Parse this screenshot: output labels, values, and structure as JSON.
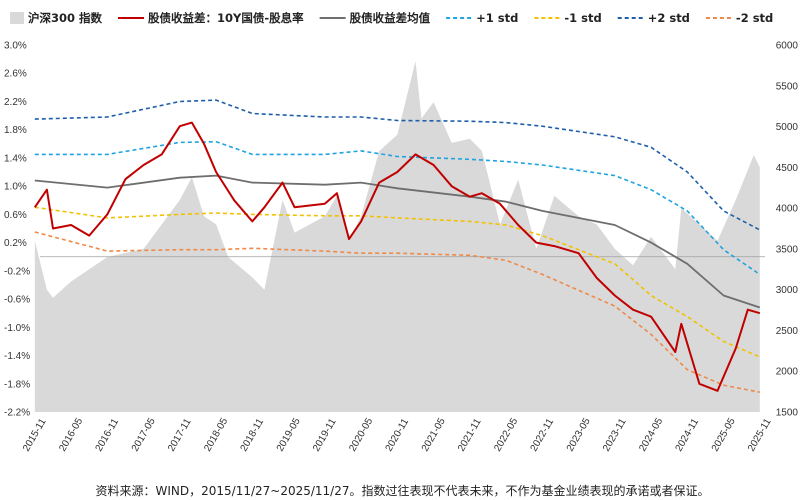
{
  "chart_data": {
    "type": "line",
    "left_axis": {
      "ylim": [
        -2.2,
        3.0
      ],
      "ticks": [
        "3.0%",
        "2.6%",
        "2.2%",
        "1.8%",
        "1.4%",
        "1.0%",
        "0.6%",
        "0.2%",
        "-0.2%",
        "-0.6%",
        "-1.0%",
        "-1.4%",
        "-1.8%",
        "-2.2%"
      ],
      "tick_values": [
        3.0,
        2.6,
        2.2,
        1.8,
        1.4,
        1.0,
        0.6,
        0.2,
        -0.2,
        -0.6,
        -1.0,
        -1.4,
        -1.8,
        -2.2
      ]
    },
    "right_axis": {
      "ylim": [
        1500,
        6000
      ],
      "ticks": [
        "6000",
        "5500",
        "5000",
        "4500",
        "4000",
        "3500",
        "3000",
        "2500",
        "2000",
        "1500"
      ],
      "tick_values": [
        6000,
        5500,
        5000,
        4500,
        4000,
        3500,
        3000,
        2500,
        2000,
        1500
      ]
    },
    "x_axis": {
      "start": "2015-11-27",
      "end": "2025-11-27",
      "tick_labels": [
        "2015-11",
        "2016-05",
        "2016-11",
        "2017-05",
        "2017-11",
        "2018-05",
        "2018-11",
        "2019-05",
        "2019-11",
        "2020-05",
        "2020-11",
        "2021-05",
        "2021-11",
        "2022-05",
        "2022-11",
        "2023-05",
        "2023-11",
        "2024-05",
        "2024-11",
        "2025-05",
        "2025-11"
      ]
    },
    "series": [
      {
        "name": "沪深300 指数",
        "kind": "area",
        "axis": "right",
        "color": "#d9d9d9",
        "points": [
          [
            "2015-11",
            3600
          ],
          [
            "2016-01",
            3000
          ],
          [
            "2016-02",
            2900
          ],
          [
            "2016-05",
            3100
          ],
          [
            "2016-11",
            3400
          ],
          [
            "2017-05",
            3500
          ],
          [
            "2017-11",
            4100
          ],
          [
            "2018-01",
            4380
          ],
          [
            "2018-03",
            3900
          ],
          [
            "2018-05",
            3800
          ],
          [
            "2018-07",
            3400
          ],
          [
            "2018-11",
            3150
          ],
          [
            "2019-01",
            3000
          ],
          [
            "2019-04",
            4100
          ],
          [
            "2019-06",
            3700
          ],
          [
            "2019-11",
            3900
          ],
          [
            "2020-01",
            4150
          ],
          [
            "2020-03",
            3600
          ],
          [
            "2020-05",
            3900
          ],
          [
            "2020-08",
            4700
          ],
          [
            "2020-11",
            4900
          ],
          [
            "2021-02",
            5800
          ],
          [
            "2021-03",
            5100
          ],
          [
            "2021-05",
            5300
          ],
          [
            "2021-08",
            4800
          ],
          [
            "2021-11",
            4850
          ],
          [
            "2022-01",
            4700
          ],
          [
            "2022-04",
            3800
          ],
          [
            "2022-07",
            4350
          ],
          [
            "2022-10",
            3500
          ],
          [
            "2023-01",
            4150
          ],
          [
            "2023-05",
            3900
          ],
          [
            "2023-08",
            3800
          ],
          [
            "2023-11",
            3500
          ],
          [
            "2024-02",
            3300
          ],
          [
            "2024-05",
            3650
          ],
          [
            "2024-09",
            3250
          ],
          [
            "2024-10",
            4000
          ],
          [
            "2025-01",
            3800
          ],
          [
            "2025-04",
            3600
          ],
          [
            "2025-07",
            4100
          ],
          [
            "2025-10",
            4650
          ],
          [
            "2025-11",
            4500
          ]
        ]
      },
      {
        "name": "股债收益差：10Y国债-股息率",
        "kind": "line",
        "axis": "left",
        "color": "#c00000",
        "points": [
          [
            "2015-11",
            0.7
          ],
          [
            "2016-01",
            0.95
          ],
          [
            "2016-02",
            0.4
          ],
          [
            "2016-05",
            0.45
          ],
          [
            "2016-08",
            0.3
          ],
          [
            "2016-11",
            0.6
          ],
          [
            "2017-02",
            1.1
          ],
          [
            "2017-05",
            1.3
          ],
          [
            "2017-08",
            1.45
          ],
          [
            "2017-11",
            1.85
          ],
          [
            "2018-01",
            1.9
          ],
          [
            "2018-03",
            1.6
          ],
          [
            "2018-05",
            1.2
          ],
          [
            "2018-08",
            0.8
          ],
          [
            "2018-11",
            0.5
          ],
          [
            "2019-01",
            0.7
          ],
          [
            "2019-04",
            1.05
          ],
          [
            "2019-06",
            0.7
          ],
          [
            "2019-11",
            0.75
          ],
          [
            "2020-01",
            0.9
          ],
          [
            "2020-03",
            0.25
          ],
          [
            "2020-05",
            0.5
          ],
          [
            "2020-08",
            1.05
          ],
          [
            "2020-11",
            1.2
          ],
          [
            "2021-02",
            1.45
          ],
          [
            "2021-05",
            1.3
          ],
          [
            "2021-08",
            1.0
          ],
          [
            "2021-11",
            0.85
          ],
          [
            "2022-01",
            0.9
          ],
          [
            "2022-04",
            0.75
          ],
          [
            "2022-07",
            0.45
          ],
          [
            "2022-10",
            0.2
          ],
          [
            "2023-01",
            0.15
          ],
          [
            "2023-05",
            0.05
          ],
          [
            "2023-08",
            -0.3
          ],
          [
            "2023-11",
            -0.55
          ],
          [
            "2024-02",
            -0.75
          ],
          [
            "2024-05",
            -0.85
          ],
          [
            "2024-09",
            -1.35
          ],
          [
            "2024-10",
            -0.95
          ],
          [
            "2025-01",
            -1.8
          ],
          [
            "2025-04",
            -1.9
          ],
          [
            "2025-07",
            -1.3
          ],
          [
            "2025-09",
            -0.75
          ],
          [
            "2025-11",
            -0.8
          ]
        ]
      },
      {
        "name": "股债收益差均值",
        "kind": "line",
        "axis": "left",
        "color": "#6e6e6e",
        "points": [
          [
            "2015-11",
            1.08
          ],
          [
            "2016-11",
            0.98
          ],
          [
            "2017-11",
            1.12
          ],
          [
            "2018-05",
            1.15
          ],
          [
            "2018-11",
            1.05
          ],
          [
            "2019-11",
            1.02
          ],
          [
            "2020-05",
            1.05
          ],
          [
            "2020-11",
            0.97
          ],
          [
            "2021-11",
            0.85
          ],
          [
            "2022-05",
            0.78
          ],
          [
            "2022-11",
            0.65
          ],
          [
            "2023-11",
            0.45
          ],
          [
            "2024-05",
            0.2
          ],
          [
            "2024-11",
            -0.1
          ],
          [
            "2025-05",
            -0.55
          ],
          [
            "2025-11",
            -0.72
          ]
        ]
      },
      {
        "name": "+1 std",
        "kind": "line",
        "axis": "left",
        "color": "#20a4df",
        "dash": "dash",
        "points": [
          [
            "2015-11",
            1.45
          ],
          [
            "2016-11",
            1.45
          ],
          [
            "2017-11",
            1.62
          ],
          [
            "2018-05",
            1.63
          ],
          [
            "2018-11",
            1.45
          ],
          [
            "2019-11",
            1.45
          ],
          [
            "2020-05",
            1.5
          ],
          [
            "2020-11",
            1.42
          ],
          [
            "2021-11",
            1.38
          ],
          [
            "2022-05",
            1.35
          ],
          [
            "2022-11",
            1.3
          ],
          [
            "2023-11",
            1.15
          ],
          [
            "2024-05",
            0.95
          ],
          [
            "2024-11",
            0.65
          ],
          [
            "2025-05",
            0.1
          ],
          [
            "2025-11",
            -0.25
          ]
        ]
      },
      {
        "name": "-1 std",
        "kind": "line",
        "axis": "left",
        "color": "#f2c200",
        "dash": "dash",
        "points": [
          [
            "2015-11",
            0.7
          ],
          [
            "2016-11",
            0.55
          ],
          [
            "2017-11",
            0.6
          ],
          [
            "2018-05",
            0.62
          ],
          [
            "2018-11",
            0.6
          ],
          [
            "2019-11",
            0.58
          ],
          [
            "2020-05",
            0.58
          ],
          [
            "2020-11",
            0.55
          ],
          [
            "2021-11",
            0.5
          ],
          [
            "2022-05",
            0.45
          ],
          [
            "2022-11",
            0.3
          ],
          [
            "2023-11",
            -0.1
          ],
          [
            "2024-05",
            -0.55
          ],
          [
            "2024-11",
            -0.85
          ],
          [
            "2025-05",
            -1.2
          ],
          [
            "2025-11",
            -1.42
          ]
        ]
      },
      {
        "name": "+2 std",
        "kind": "line",
        "axis": "left",
        "color": "#1f5fa8",
        "dash": "dash",
        "points": [
          [
            "2015-11",
            1.95
          ],
          [
            "2016-11",
            1.98
          ],
          [
            "2017-11",
            2.2
          ],
          [
            "2018-05",
            2.22
          ],
          [
            "2018-11",
            2.03
          ],
          [
            "2019-11",
            1.98
          ],
          [
            "2020-05",
            1.98
          ],
          [
            "2020-11",
            1.93
          ],
          [
            "2021-11",
            1.92
          ],
          [
            "2022-05",
            1.9
          ],
          [
            "2022-11",
            1.85
          ],
          [
            "2023-11",
            1.7
          ],
          [
            "2024-05",
            1.55
          ],
          [
            "2024-11",
            1.2
          ],
          [
            "2025-05",
            0.65
          ],
          [
            "2025-11",
            0.38
          ]
        ]
      },
      {
        "name": "-2 std",
        "kind": "line",
        "axis": "left",
        "color": "#ee8a4a",
        "dash": "dash",
        "points": [
          [
            "2015-11",
            0.35
          ],
          [
            "2016-11",
            0.08
          ],
          [
            "2017-11",
            0.1
          ],
          [
            "2018-05",
            0.1
          ],
          [
            "2018-11",
            0.12
          ],
          [
            "2019-11",
            0.08
          ],
          [
            "2020-05",
            0.05
          ],
          [
            "2020-11",
            0.05
          ],
          [
            "2021-11",
            0.02
          ],
          [
            "2022-05",
            -0.05
          ],
          [
            "2022-11",
            -0.25
          ],
          [
            "2023-11",
            -0.7
          ],
          [
            "2024-05",
            -1.1
          ],
          [
            "2024-11",
            -1.6
          ],
          [
            "2025-05",
            -1.82
          ],
          [
            "2025-11",
            -1.92
          ]
        ]
      }
    ]
  },
  "legend": [
    {
      "label": "沪深300 指数",
      "color": "#d9d9d9",
      "marker": "box"
    },
    {
      "label": "股债收益差：10Y国债-股息率",
      "color": "#c00000",
      "marker": "line"
    },
    {
      "label": "股债收益差均值",
      "color": "#6e6e6e",
      "marker": "line"
    },
    {
      "label": "+1 std",
      "color": "#20a4df",
      "marker": "dash"
    },
    {
      "label": "-1 std",
      "color": "#f2c200",
      "marker": "dash"
    },
    {
      "label": "+2 std",
      "color": "#1f5fa8",
      "marker": "dash"
    },
    {
      "label": "-2 std",
      "color": "#ee8a4a",
      "marker": "dash"
    }
  ],
  "footnote": "资料来源：WIND，2015/11/27~2025/11/27。指数过往表现不代表未来，不作为基金业绩表现的承诺或者保证。"
}
